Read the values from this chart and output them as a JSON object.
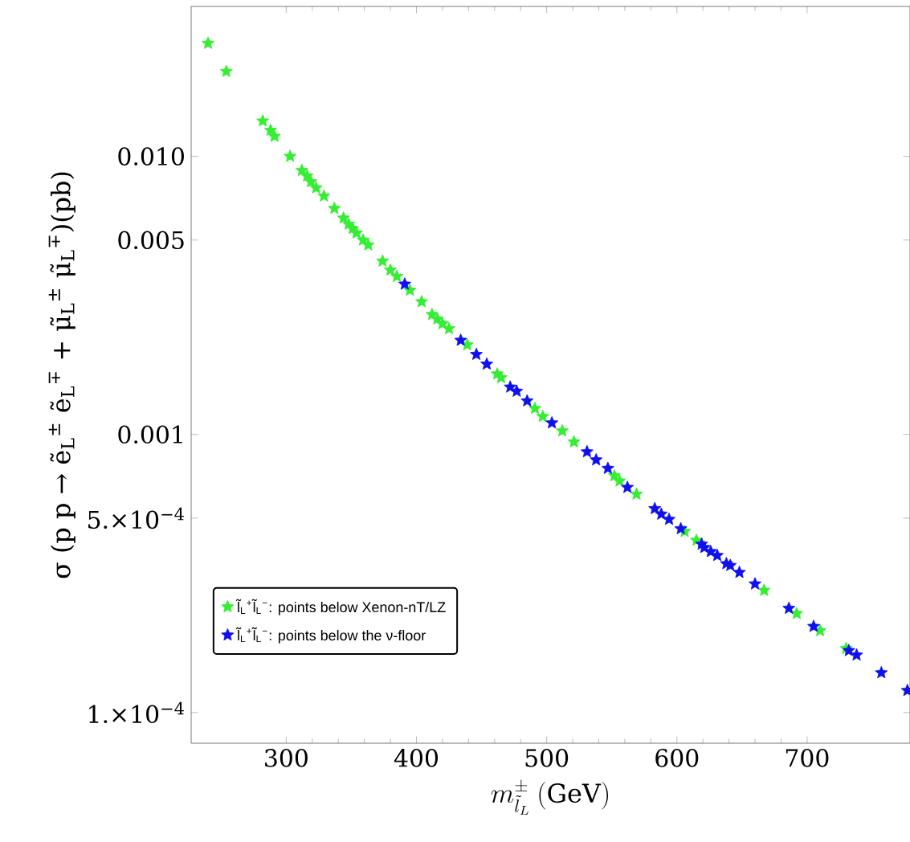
{
  "chart_data": {
    "type": "scatter",
    "xlabel": "m_{\\tilde{l}_L}^{\\pm}\\ (\\mathrm{GeV})",
    "ylabel": "σ (p p → ẽ$_{L}$$^{±}$ ẽ$_{L}$$^{∓}$ + μ̃$_{L}$$^{±}$ μ̃$_{L}$$^{∓}$)(pb)",
    "xlim": [
      227,
      779
    ],
    "ylim": [
      7.76e-05,
      0.0346
    ],
    "log": "y",
    "xticks": [
      300,
      400,
      500,
      600,
      700
    ],
    "yticks": [
      {
        "value": 0.0001,
        "label": "1.×10$^{−4}$"
      },
      {
        "value": 0.0005,
        "label": "5.×10$^{−4}$"
      },
      0.001,
      0.005,
      {
        "value": 0.01,
        "label": "0.010"
      }
    ],
    "marker": "star",
    "grid": false,
    "legend": "bottom left",
    "series": [
      {
        "name": "l̃$_{L}$$^{+}$l̃$_{L}$$^{−}$: points below Xenon-nT/LZ",
        "color": "#33ee33",
        "x": [
          240,
          254,
          282,
          288,
          291,
          303,
          312,
          316,
          319,
          323,
          329,
          337,
          344,
          348,
          351,
          354,
          359,
          363,
          374,
          380,
          385,
          395,
          404,
          412,
          416,
          420,
          425,
          439,
          462,
          465,
          491,
          497,
          512,
          521,
          552,
          556,
          569,
          606,
          615,
          667,
          692,
          710,
          730
        ],
        "values": [
          0.0255,
          0.0202,
          0.0134,
          0.0124,
          0.0118,
          0.01,
          0.0089,
          0.0085,
          0.0081,
          0.0077,
          0.0072,
          0.0065,
          0.006,
          0.0057,
          0.0055,
          0.0053,
          0.005,
          0.0048,
          0.0042,
          0.0039,
          0.0037,
          0.0033,
          0.003,
          0.0027,
          0.0026,
          0.0025,
          0.0024,
          0.0021,
          0.00165,
          0.0016,
          0.00124,
          0.00116,
          0.00103,
          0.00094,
          0.00071,
          0.00068,
          0.00061,
          0.000448,
          0.000416,
          0.000275,
          0.000227,
          0.000197,
          0.00017
        ]
      },
      {
        "name": "l̃$_{L}$$^{+}$l̃$_{L}$$^{−}$: points below the ν-floor",
        "color": "#1010ee",
        "x": [
          391,
          434,
          446,
          454,
          472,
          477,
          485,
          504,
          531,
          538,
          547,
          562,
          583,
          588,
          594,
          603,
          619,
          621,
          626,
          631,
          638,
          641,
          648,
          660,
          686,
          705,
          732,
          738,
          757,
          777
        ],
        "values": [
          0.00347,
          0.00218,
          0.00194,
          0.00179,
          0.00148,
          0.00143,
          0.00132,
          0.0011,
          0.000866,
          0.00081,
          0.000755,
          0.000645,
          0.000541,
          0.000517,
          0.000495,
          0.000458,
          0.000403,
          0.000392,
          0.000379,
          0.000367,
          0.000343,
          0.000338,
          0.000319,
          0.00029,
          0.000237,
          0.000204,
          0.000167,
          0.000161,
          0.000139,
          0.00012
        ]
      }
    ]
  }
}
